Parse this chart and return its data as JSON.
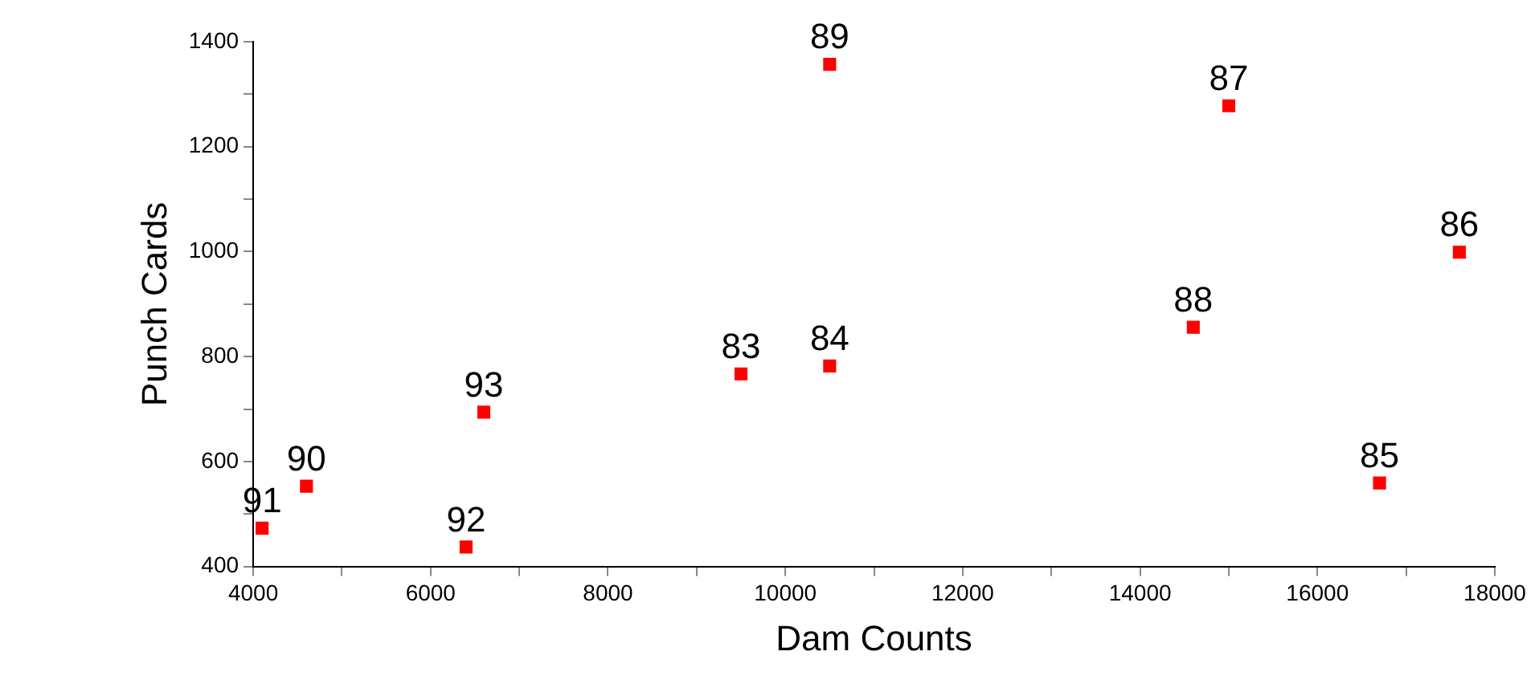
{
  "chart_data": {
    "type": "scatter",
    "xlabel": "Dam Counts",
    "ylabel": "Punch Cards",
    "x": [
      4100,
      4600,
      6400,
      6600,
      9500,
      10500,
      10500,
      14600,
      15000,
      16700,
      17600
    ],
    "series": [
      {
        "color": "#ff0000",
        "values": [
          473,
          553,
          437,
          694,
          767,
          782,
          1357,
          856,
          1278,
          559,
          999
        ]
      }
    ],
    "xlim": [
      4000,
      18000
    ],
    "xticks": [
      4000,
      {
        "value": 5000,
        "label": null
      },
      6000,
      {
        "value": 7000,
        "label": null
      },
      8000,
      {
        "value": 9000,
        "label": null
      },
      10000,
      {
        "value": 11000,
        "label": null
      },
      12000,
      {
        "value": 13000,
        "label": null
      },
      14000,
      {
        "value": 15000,
        "label": null
      },
      16000,
      {
        "value": 17000,
        "label": null
      },
      18000
    ],
    "ylim": [
      400,
      1400
    ],
    "yticks": [
      400,
      {
        "value": 500,
        "label": null
      },
      600,
      {
        "value": 700,
        "label": null
      },
      800,
      {
        "value": 900,
        "label": null
      },
      1000,
      {
        "value": 1100,
        "label": null
      },
      1200,
      {
        "value": 1300,
        "label": null
      },
      1400
    ],
    "annotations": [
      {
        "text": "91",
        "x": 4100,
        "y": 473
      },
      {
        "text": "90",
        "x": 4600,
        "y": 553
      },
      {
        "text": "92",
        "x": 6400,
        "y": 437
      },
      {
        "text": "93",
        "x": 6600,
        "y": 694
      },
      {
        "text": "83",
        "x": 9500,
        "y": 767
      },
      {
        "text": "84",
        "x": 10500,
        "y": 782
      },
      {
        "text": "89",
        "x": 10500,
        "y": 1357
      },
      {
        "text": "88",
        "x": 14600,
        "y": 856
      },
      {
        "text": "87",
        "x": 15000,
        "y": 1278
      },
      {
        "text": "85",
        "x": 16700,
        "y": 559
      },
      {
        "text": "86",
        "x": 17600,
        "y": 999
      }
    ],
    "grid": false,
    "legend": false,
    "marker": "square"
  }
}
